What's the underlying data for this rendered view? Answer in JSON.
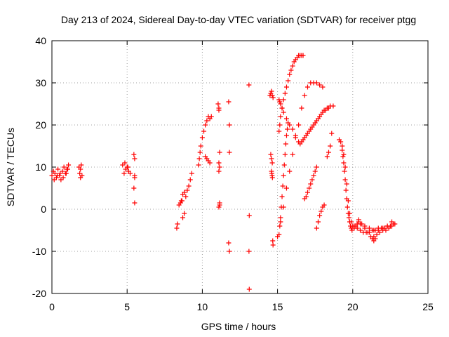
{
  "chart_data": {
    "type": "scatter",
    "title": "Day 213 of 2024, Sidereal Day-to-day VTEC variation (SDTVAR) for receiver ptgg",
    "xlabel": "GPS time / hours",
    "ylabel": "SDTVAR / TECUs",
    "xlim": [
      0,
      25
    ],
    "ylim": [
      -20,
      40
    ],
    "xticks": [
      0,
      5,
      10,
      15,
      20,
      25
    ],
    "yticks": [
      -20,
      -10,
      0,
      10,
      20,
      30,
      40
    ],
    "grid": true,
    "marker": "+",
    "color": "#ff0000",
    "series": [
      {
        "name": "SDTVAR",
        "x": [
          0.0,
          0.1,
          0.2,
          0.3,
          0.4,
          0.5,
          0.6,
          0.7,
          0.8,
          0.9,
          1.0,
          1.1,
          0.15,
          0.35,
          0.55,
          0.75,
          0.95,
          1.05,
          1.8,
          1.85,
          1.9,
          1.95,
          2.0,
          1.9,
          4.7,
          4.8,
          4.9,
          5.0,
          5.1,
          5.2,
          4.85,
          5.05,
          5.45,
          5.5,
          5.5,
          5.45,
          5.5,
          5.5,
          8.3,
          8.35,
          8.45,
          8.55,
          8.6,
          8.7,
          8.8,
          8.9,
          9.0,
          9.1,
          9.2,
          9.3,
          8.7,
          8.65,
          8.8,
          9.75,
          9.8,
          9.85,
          9.9,
          10.0,
          10.1,
          10.2,
          10.3,
          10.4,
          10.5,
          10.6,
          10.2,
          10.3,
          10.4,
          10.5,
          11.05,
          11.1,
          11.1,
          11.15,
          11.1,
          11.15,
          11.1,
          11.15,
          11.1,
          11.15,
          11.75,
          11.8,
          11.8,
          11.75,
          11.8,
          13.1,
          13.12,
          13.1,
          13.12,
          14.5,
          14.55,
          14.6,
          14.65,
          14.7,
          14.55,
          14.6,
          14.65,
          14.6,
          14.62,
          14.64,
          14.66,
          14.68,
          14.7,
          15.1,
          15.15,
          15.2,
          15.3,
          15.4,
          15.5,
          15.6,
          15.7,
          15.8,
          15.9,
          16.0,
          16.1,
          16.2,
          16.3,
          16.4,
          16.5,
          16.6,
          16.7,
          15.1,
          15.15,
          15.2,
          15.3,
          15.4,
          15.6,
          15.8,
          16.0,
          16.2,
          16.4,
          16.5,
          16.6,
          16.7,
          16.8,
          16.9,
          17.0,
          17.1,
          17.2,
          17.3,
          17.4,
          17.5,
          17.6,
          17.7,
          17.8,
          17.9,
          18.0,
          18.1,
          18.2,
          18.3,
          18.4,
          18.5,
          15.1,
          15.15,
          15.2,
          15.25,
          15.3,
          15.35,
          15.4,
          15.45,
          15.5,
          15.55,
          15.6,
          15.65,
          15.7,
          15.0,
          15.2,
          15.4,
          15.6,
          15.8,
          16.0,
          16.2,
          16.4,
          16.6,
          16.8,
          17.0,
          17.2,
          17.4,
          17.6,
          17.8,
          18.0,
          16.8,
          16.9,
          17.0,
          17.1,
          17.2,
          17.3,
          17.4,
          17.5,
          17.6,
          17.6,
          17.7,
          17.8,
          17.9,
          18.0,
          18.1,
          18.3,
          18.4,
          18.5,
          18.6,
          18.7,
          19.1,
          19.2,
          19.3,
          19.4,
          19.5,
          19.6,
          19.7,
          19.8,
          19.9,
          20.0,
          20.1,
          20.2,
          20.3,
          20.4,
          19.3,
          19.35,
          19.4,
          19.45,
          19.5,
          19.55,
          19.6,
          19.65,
          19.7,
          19.75,
          19.8,
          19.85,
          19.9,
          19.95,
          20.1,
          20.3,
          20.5,
          20.7,
          20.9,
          21.1,
          21.3,
          21.5,
          21.7,
          21.9,
          22.1,
          22.3,
          22.5,
          22.7,
          20.4,
          20.6,
          20.8,
          21.0,
          21.2,
          21.4,
          21.6,
          21.8,
          22.0,
          22.2,
          22.4,
          22.6,
          22.8,
          20.5,
          20.8,
          21.1,
          21.4,
          21.7,
          22.0,
          22.3,
          22.6,
          21.3,
          21.4,
          21.5
        ],
        "y": [
          8.0,
          9.0,
          8.5,
          7.5,
          9.5,
          8.0,
          7.0,
          9.0,
          10.0,
          8.5,
          9.5,
          10.5,
          7.0,
          8.0,
          8.5,
          7.5,
          8.5,
          9.5,
          10.0,
          8.5,
          9.5,
          10.5,
          8.0,
          7.5,
          10.5,
          8.5,
          9.5,
          10.0,
          9.0,
          8.5,
          11.0,
          10.0,
          13.0,
          12.0,
          8.0,
          5.0,
          1.5,
          7.5,
          -4.5,
          -3.5,
          1.0,
          1.5,
          2.0,
          -2.0,
          -1.0,
          3.0,
          4.5,
          5.5,
          7.0,
          8.5,
          3.5,
          2.0,
          4.0,
          10.5,
          12.0,
          13.5,
          15.0,
          17.0,
          18.5,
          20.0,
          21.0,
          22.0,
          21.5,
          22.0,
          12.5,
          12.0,
          11.5,
          11.0,
          25.0,
          24.0,
          23.5,
          13.5,
          11.0,
          10.0,
          9.0,
          1.5,
          0.5,
          1.0,
          25.5,
          20.0,
          13.5,
          -8.0,
          -10.0,
          29.5,
          -1.5,
          -10.0,
          -19.0,
          27.0,
          27.5,
          28.0,
          27.0,
          26.5,
          13.0,
          12.0,
          11.0,
          9.0,
          8.5,
          8.0,
          7.5,
          -7.5,
          -8.5,
          18.5,
          20.0,
          22.0,
          24.0,
          26.0,
          27.5,
          29.0,
          30.5,
          32.0,
          33.0,
          34.0,
          35.0,
          35.5,
          36.0,
          36.5,
          36.5,
          36.5,
          36.5,
          26.0,
          25.5,
          25.0,
          24.0,
          23.0,
          21.5,
          20.0,
          19.0,
          17.5,
          16.0,
          15.5,
          16.0,
          16.5,
          17.0,
          17.5,
          18.0,
          18.5,
          19.0,
          19.5,
          20.0,
          20.5,
          21.0,
          21.5,
          22.0,
          22.5,
          23.0,
          23.5,
          23.5,
          24.0,
          24.0,
          24.5,
          -6.0,
          -4.0,
          -2.0,
          0.5,
          3.0,
          5.5,
          8.0,
          10.5,
          13.0,
          15.5,
          17.5,
          19.0,
          20.5,
          -6.5,
          -3.0,
          0.5,
          5.0,
          9.0,
          13.0,
          17.0,
          20.0,
          24.0,
          27.0,
          29.0,
          30.0,
          30.0,
          30.0,
          29.5,
          29.0,
          2.5,
          3.0,
          4.0,
          5.0,
          6.0,
          7.0,
          8.0,
          9.0,
          10.0,
          -4.5,
          -3.0,
          -1.5,
          -0.5,
          0.5,
          1.0,
          12.5,
          13.5,
          15.0,
          18.0,
          24.5,
          16.5,
          16.0,
          15.0,
          13.0,
          10.0,
          6.0,
          2.0,
          -1.0,
          -3.0,
          -4.0,
          -4.5,
          -4.0,
          -3.5,
          -3.0,
          14.0,
          12.5,
          11.0,
          9.0,
          7.0,
          4.5,
          2.5,
          0.5,
          -1.0,
          -2.0,
          -3.0,
          -4.0,
          -4.5,
          -5.0,
          -4.0,
          -4.5,
          -5.0,
          -5.5,
          -5.5,
          -5.5,
          -5.0,
          -5.0,
          -4.5,
          -4.5,
          -4.5,
          -4.0,
          -4.0,
          -3.5,
          -2.5,
          -3.5,
          -4.5,
          -5.5,
          -6.5,
          -6.5,
          -6.0,
          -5.5,
          -5.0,
          -5.0,
          -4.5,
          -4.0,
          -3.5,
          -3.5,
          -4.0,
          -4.5,
          -5.0,
          -5.0,
          -4.5,
          -4.0,
          -3.0,
          -7.0,
          -7.5,
          -7.0
        ]
      }
    ]
  }
}
